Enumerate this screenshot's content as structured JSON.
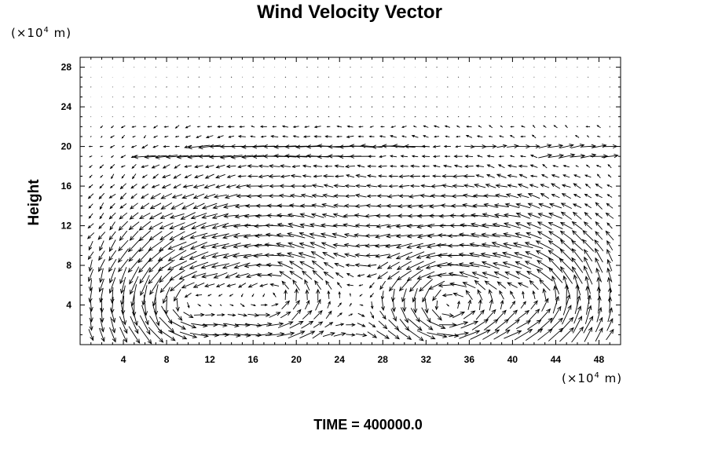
{
  "chart_data": {
    "type": "vector_field",
    "title": "Wind Velocity Vector",
    "ylabel": "Height",
    "y_unit": {
      "prefix": "(×10",
      "exp": "4",
      "suffix": " m)"
    },
    "x_unit": {
      "prefix": "(×10",
      "exp": "4",
      "suffix": " m)"
    },
    "footer": "TIME = 400000.0",
    "xlim": [
      0,
      50
    ],
    "ylim": [
      0,
      29
    ],
    "x_ticks": [
      4,
      8,
      12,
      16,
      20,
      24,
      28,
      32,
      36,
      40,
      44,
      48
    ],
    "y_ticks": [
      4,
      8,
      12,
      16,
      20,
      24,
      28
    ],
    "grid_dx": 2,
    "grid_dy": 1,
    "grid": false,
    "features": {
      "jets": [
        {
          "y": 20,
          "x_from": 11,
          "x_to": 31,
          "u": -3.0
        },
        {
          "y": 19,
          "x_from": 6,
          "x_to": 26,
          "u": -3.4
        },
        {
          "y": 20,
          "x_from": 36,
          "x_to": 50,
          "u": 3.0
        },
        {
          "y": 19,
          "x_from": 43,
          "x_to": 50,
          "u": 3.4
        }
      ],
      "vortices": [
        {
          "x": 9,
          "y": 4,
          "r": 3.5,
          "strength": 2.6
        },
        {
          "x": 18,
          "y": 5,
          "r": 4.5,
          "strength": 2.6
        },
        {
          "x": 34,
          "y": 4,
          "r": 4.0,
          "strength": 3.4
        },
        {
          "x": 43,
          "y": 5,
          "r": 3.5,
          "strength": 2.2
        }
      ]
    }
  }
}
